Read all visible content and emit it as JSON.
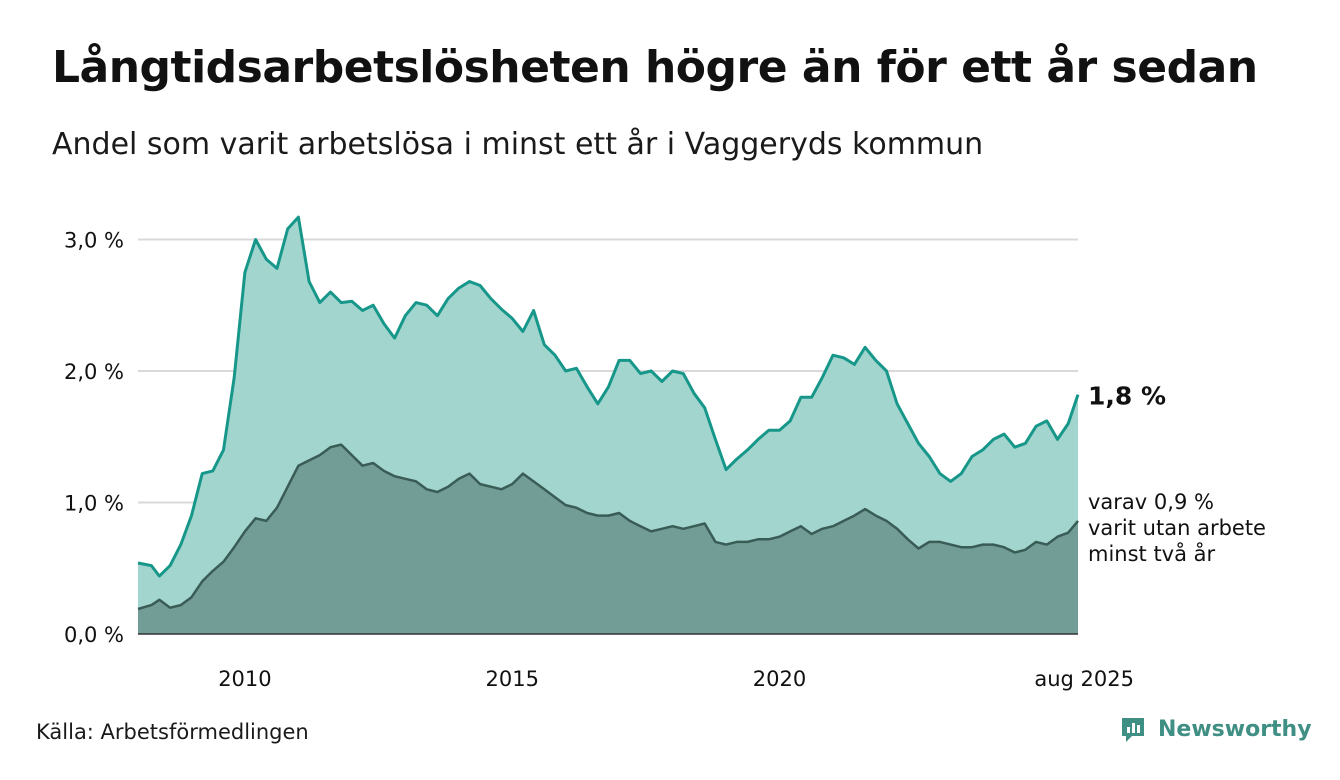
{
  "title": "Långtidsarbetslösheten högre än för ett år sedan",
  "subtitle": "Andel som varit arbetslösa i minst ett år i Vaggeryds kommun",
  "source": "Källa: Arbetsförmedlingen",
  "brand": {
    "name": "Newsworthy",
    "icon": "newsworthy-logo-icon"
  },
  "colors": {
    "series1_line": "#17978a",
    "series1_fill": "#a3d5cf",
    "series2_line": "#3a5c56",
    "series2_fill": "#729d96",
    "grid": "#d9d9d9",
    "text": "#111111"
  },
  "chart_data": {
    "type": "area",
    "xlabel": "",
    "ylabel": "",
    "ylim": [
      0,
      3.3
    ],
    "y_ticks": [
      0,
      1,
      2,
      3
    ],
    "y_tick_labels": [
      "0,0 %",
      "1,0 %",
      "2,0 %",
      "3,0 %"
    ],
    "x_ticks": [
      2010,
      2015,
      2020,
      2025.583
    ],
    "x_tick_labels": [
      "2010",
      "2015",
      "2020",
      "aug 2025"
    ],
    "grid": true,
    "legend": "none",
    "series": [
      {
        "label": "1,8 %",
        "points": [
          [
            2008.0,
            0.54
          ],
          [
            2008.25,
            0.52
          ],
          [
            2008.4,
            0.44
          ],
          [
            2008.6,
            0.52
          ],
          [
            2008.8,
            0.68
          ],
          [
            2009.0,
            0.9
          ],
          [
            2009.2,
            1.22
          ],
          [
            2009.4,
            1.24
          ],
          [
            2009.6,
            1.4
          ],
          [
            2009.8,
            1.95
          ],
          [
            2010.0,
            2.75
          ],
          [
            2010.2,
            3.0
          ],
          [
            2010.4,
            2.85
          ],
          [
            2010.6,
            2.78
          ],
          [
            2010.8,
            3.08
          ],
          [
            2011.0,
            3.17
          ],
          [
            2011.2,
            2.68
          ],
          [
            2011.4,
            2.52
          ],
          [
            2011.6,
            2.6
          ],
          [
            2011.8,
            2.52
          ],
          [
            2012.0,
            2.53
          ],
          [
            2012.2,
            2.46
          ],
          [
            2012.4,
            2.5
          ],
          [
            2012.6,
            2.36
          ],
          [
            2012.8,
            2.25
          ],
          [
            2013.0,
            2.42
          ],
          [
            2013.2,
            2.52
          ],
          [
            2013.4,
            2.5
          ],
          [
            2013.6,
            2.42
          ],
          [
            2013.8,
            2.55
          ],
          [
            2014.0,
            2.63
          ],
          [
            2014.2,
            2.68
          ],
          [
            2014.4,
            2.65
          ],
          [
            2014.6,
            2.55
          ],
          [
            2014.8,
            2.47
          ],
          [
            2015.0,
            2.4
          ],
          [
            2015.2,
            2.3
          ],
          [
            2015.4,
            2.46
          ],
          [
            2015.6,
            2.2
          ],
          [
            2015.8,
            2.12
          ],
          [
            2016.0,
            2.0
          ],
          [
            2016.2,
            2.02
          ],
          [
            2016.4,
            1.88
          ],
          [
            2016.6,
            1.75
          ],
          [
            2016.8,
            1.88
          ],
          [
            2017.0,
            2.08
          ],
          [
            2017.2,
            2.08
          ],
          [
            2017.4,
            1.98
          ],
          [
            2017.6,
            2.0
          ],
          [
            2017.8,
            1.92
          ],
          [
            2018.0,
            2.0
          ],
          [
            2018.2,
            1.98
          ],
          [
            2018.4,
            1.83
          ],
          [
            2018.6,
            1.72
          ],
          [
            2018.8,
            1.48
          ],
          [
            2019.0,
            1.25
          ],
          [
            2019.2,
            1.33
          ],
          [
            2019.4,
            1.4
          ],
          [
            2019.6,
            1.48
          ],
          [
            2019.8,
            1.55
          ],
          [
            2020.0,
            1.55
          ],
          [
            2020.2,
            1.62
          ],
          [
            2020.4,
            1.8
          ],
          [
            2020.6,
            1.8
          ],
          [
            2020.8,
            1.95
          ],
          [
            2021.0,
            2.12
          ],
          [
            2021.2,
            2.1
          ],
          [
            2021.4,
            2.05
          ],
          [
            2021.6,
            2.18
          ],
          [
            2021.8,
            2.08
          ],
          [
            2022.0,
            2.0
          ],
          [
            2022.2,
            1.75
          ],
          [
            2022.4,
            1.6
          ],
          [
            2022.6,
            1.45
          ],
          [
            2022.8,
            1.35
          ],
          [
            2023.0,
            1.22
          ],
          [
            2023.2,
            1.16
          ],
          [
            2023.4,
            1.22
          ],
          [
            2023.6,
            1.35
          ],
          [
            2023.8,
            1.4
          ],
          [
            2024.0,
            1.48
          ],
          [
            2024.2,
            1.52
          ],
          [
            2024.4,
            1.42
          ],
          [
            2024.6,
            1.45
          ],
          [
            2024.8,
            1.58
          ],
          [
            2025.0,
            1.62
          ],
          [
            2025.2,
            1.48
          ],
          [
            2025.4,
            1.6
          ],
          [
            2025.583,
            1.82
          ]
        ]
      },
      {
        "label": "varav 0,9 % varit utan arbete minst två år",
        "label_lines": [
          "varav 0,9 %",
          "varit utan arbete",
          "minst två år"
        ],
        "points": [
          [
            2008.0,
            0.19
          ],
          [
            2008.25,
            0.22
          ],
          [
            2008.4,
            0.26
          ],
          [
            2008.6,
            0.2
          ],
          [
            2008.8,
            0.22
          ],
          [
            2009.0,
            0.28
          ],
          [
            2009.2,
            0.4
          ],
          [
            2009.4,
            0.48
          ],
          [
            2009.6,
            0.55
          ],
          [
            2009.8,
            0.66
          ],
          [
            2010.0,
            0.78
          ],
          [
            2010.2,
            0.88
          ],
          [
            2010.4,
            0.86
          ],
          [
            2010.6,
            0.96
          ],
          [
            2010.8,
            1.12
          ],
          [
            2011.0,
            1.28
          ],
          [
            2011.2,
            1.32
          ],
          [
            2011.4,
            1.36
          ],
          [
            2011.6,
            1.42
          ],
          [
            2011.8,
            1.44
          ],
          [
            2012.0,
            1.36
          ],
          [
            2012.2,
            1.28
          ],
          [
            2012.4,
            1.3
          ],
          [
            2012.6,
            1.24
          ],
          [
            2012.8,
            1.2
          ],
          [
            2013.0,
            1.18
          ],
          [
            2013.2,
            1.16
          ],
          [
            2013.4,
            1.1
          ],
          [
            2013.6,
            1.08
          ],
          [
            2013.8,
            1.12
          ],
          [
            2014.0,
            1.18
          ],
          [
            2014.2,
            1.22
          ],
          [
            2014.4,
            1.14
          ],
          [
            2014.6,
            1.12
          ],
          [
            2014.8,
            1.1
          ],
          [
            2015.0,
            1.14
          ],
          [
            2015.2,
            1.22
          ],
          [
            2015.4,
            1.16
          ],
          [
            2015.6,
            1.1
          ],
          [
            2015.8,
            1.04
          ],
          [
            2016.0,
            0.98
          ],
          [
            2016.2,
            0.96
          ],
          [
            2016.4,
            0.92
          ],
          [
            2016.6,
            0.9
          ],
          [
            2016.8,
            0.9
          ],
          [
            2017.0,
            0.92
          ],
          [
            2017.2,
            0.86
          ],
          [
            2017.4,
            0.82
          ],
          [
            2017.6,
            0.78
          ],
          [
            2017.8,
            0.8
          ],
          [
            2018.0,
            0.82
          ],
          [
            2018.2,
            0.8
          ],
          [
            2018.4,
            0.82
          ],
          [
            2018.6,
            0.84
          ],
          [
            2018.8,
            0.7
          ],
          [
            2019.0,
            0.68
          ],
          [
            2019.2,
            0.7
          ],
          [
            2019.4,
            0.7
          ],
          [
            2019.6,
            0.72
          ],
          [
            2019.8,
            0.72
          ],
          [
            2020.0,
            0.74
          ],
          [
            2020.2,
            0.78
          ],
          [
            2020.4,
            0.82
          ],
          [
            2020.6,
            0.76
          ],
          [
            2020.8,
            0.8
          ],
          [
            2021.0,
            0.82
          ],
          [
            2021.2,
            0.86
          ],
          [
            2021.4,
            0.9
          ],
          [
            2021.6,
            0.95
          ],
          [
            2021.8,
            0.9
          ],
          [
            2022.0,
            0.86
          ],
          [
            2022.2,
            0.8
          ],
          [
            2022.4,
            0.72
          ],
          [
            2022.6,
            0.65
          ],
          [
            2022.8,
            0.7
          ],
          [
            2023.0,
            0.7
          ],
          [
            2023.2,
            0.68
          ],
          [
            2023.4,
            0.66
          ],
          [
            2023.6,
            0.66
          ],
          [
            2023.8,
            0.68
          ],
          [
            2024.0,
            0.68
          ],
          [
            2024.2,
            0.66
          ],
          [
            2024.4,
            0.62
          ],
          [
            2024.6,
            0.64
          ],
          [
            2024.8,
            0.7
          ],
          [
            2025.0,
            0.68
          ],
          [
            2025.2,
            0.74
          ],
          [
            2025.4,
            0.77
          ],
          [
            2025.583,
            0.86
          ]
        ]
      }
    ]
  }
}
